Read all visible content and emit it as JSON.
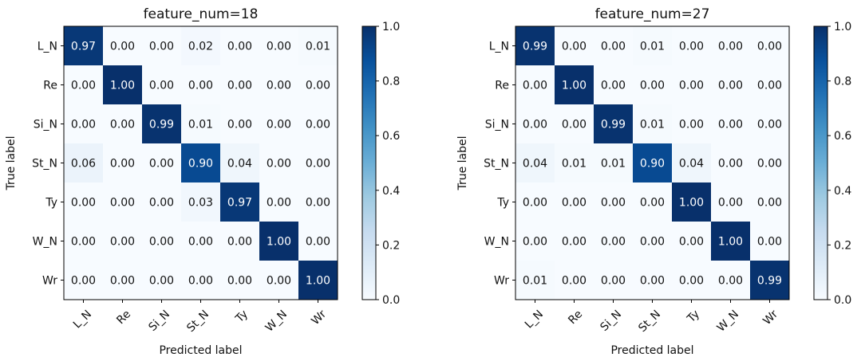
{
  "chart_data": [
    {
      "type": "heatmap",
      "title": "feature_num=18",
      "xlabel": "Predicted label",
      "ylabel": "True label",
      "x_categories": [
        "L_N",
        "Re",
        "Si_N",
        "St_N",
        "Ty",
        "W_N",
        "Wr"
      ],
      "y_categories": [
        "L_N",
        "Re",
        "Si_N",
        "St_N",
        "Ty",
        "W_N",
        "Wr"
      ],
      "values": [
        [
          0.97,
          0.0,
          0.0,
          0.02,
          0.0,
          0.0,
          0.01
        ],
        [
          0.0,
          1.0,
          0.0,
          0.0,
          0.0,
          0.0,
          0.0
        ],
        [
          0.0,
          0.0,
          0.99,
          0.01,
          0.0,
          0.0,
          0.0
        ],
        [
          0.06,
          0.0,
          0.0,
          0.9,
          0.04,
          0.0,
          0.0
        ],
        [
          0.0,
          0.0,
          0.0,
          0.03,
          0.97,
          0.0,
          0.0
        ],
        [
          0.0,
          0.0,
          0.0,
          0.0,
          0.0,
          1.0,
          0.0
        ],
        [
          0.0,
          0.0,
          0.0,
          0.0,
          0.0,
          0.0,
          1.0
        ]
      ],
      "colorbar": {
        "range": [
          0.0,
          1.0
        ],
        "ticks": [
          "0.0",
          "0.2",
          "0.4",
          "0.6",
          "0.8",
          "1.0"
        ]
      }
    },
    {
      "type": "heatmap",
      "title": "feature_num=27",
      "xlabel": "Predicted label",
      "ylabel": "True label",
      "x_categories": [
        "L_N",
        "Re",
        "Si_N",
        "St_N",
        "Ty",
        "W_N",
        "Wr"
      ],
      "y_categories": [
        "L_N",
        "Re",
        "Si_N",
        "St_N",
        "Ty",
        "W_N",
        "Wr"
      ],
      "values": [
        [
          0.99,
          0.0,
          0.0,
          0.01,
          0.0,
          0.0,
          0.0
        ],
        [
          0.0,
          1.0,
          0.0,
          0.0,
          0.0,
          0.0,
          0.0
        ],
        [
          0.0,
          0.0,
          0.99,
          0.01,
          0.0,
          0.0,
          0.0
        ],
        [
          0.04,
          0.01,
          0.01,
          0.9,
          0.04,
          0.0,
          0.0
        ],
        [
          0.0,
          0.0,
          0.0,
          0.0,
          1.0,
          0.0,
          0.0
        ],
        [
          0.0,
          0.0,
          0.0,
          0.0,
          0.0,
          1.0,
          0.0
        ],
        [
          0.01,
          0.0,
          0.0,
          0.0,
          0.0,
          0.0,
          0.99
        ]
      ],
      "colorbar": {
        "range": [
          0.0,
          1.0
        ],
        "ticks": [
          "0.0",
          "0.2",
          "0.4",
          "0.6",
          "0.8",
          "1.0"
        ]
      }
    }
  ],
  "colors": {
    "low": "#f7fbff",
    "high": "#08306b",
    "text_dark": "#111111",
    "text_light": "#ffffff"
  }
}
